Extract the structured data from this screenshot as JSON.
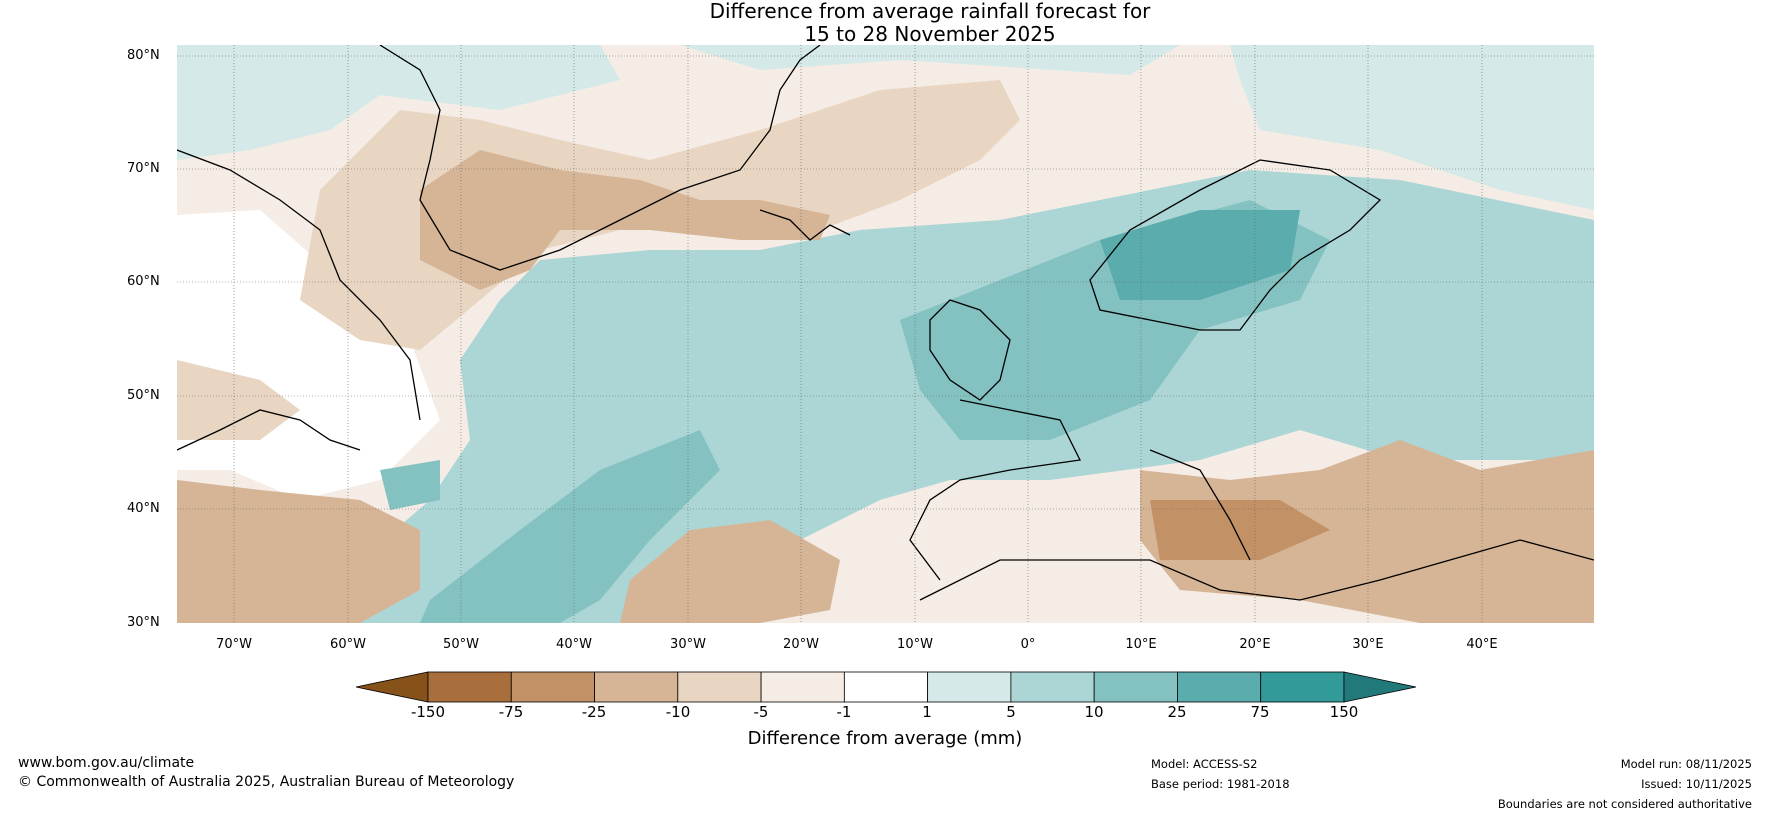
{
  "title": {
    "line1": "Difference from average rainfall forecast for",
    "line2": "15 to 28 November 2025"
  },
  "map": {
    "lat_labels": [
      "80°N",
      "70°N",
      "60°N",
      "50°N",
      "40°N",
      "30°N"
    ],
    "lon_labels": [
      "70°W",
      "60°W",
      "50°W",
      "40°W",
      "30°W",
      "20°W",
      "10°W",
      "0°",
      "10°E",
      "20°E",
      "30°E",
      "40°E"
    ],
    "colors": {
      "dry_extreme": "#865219",
      "teal_extreme": "#22797A"
    }
  },
  "colorbar": {
    "title": "Difference from average (mm)",
    "ticks": [
      "-150",
      "-75",
      "-25",
      "-10",
      "-5",
      "-1",
      "1",
      "5",
      "10",
      "25",
      "75",
      "150"
    ],
    "bins": [
      {
        "color": "#865219"
      },
      {
        "color": "#A86E3B"
      },
      {
        "color": "#C29165"
      },
      {
        "color": "#D6B596"
      },
      {
        "color": "#E8D5C2"
      },
      {
        "color": "#F4ECE5"
      },
      {
        "color": "#FFFFFF"
      },
      {
        "color": "#D4E9E8"
      },
      {
        "color": "#ABD6D5"
      },
      {
        "color": "#84C2C2"
      },
      {
        "color": "#5AACAD"
      },
      {
        "color": "#339A9A"
      },
      {
        "color": "#22797A"
      }
    ]
  },
  "footer": {
    "website": "www.bom.gov.au/climate",
    "copyright": "© Commonwealth of Australia 2025, Australian Bureau of Meteorology",
    "model": "Model: ACCESS-S2",
    "base_period": "Base period: 1981-2018",
    "model_run": "Model run: 08/11/2025",
    "issued": "Issued: 10/11/2025",
    "boundaries": "Boundaries are not considered authoritative"
  }
}
